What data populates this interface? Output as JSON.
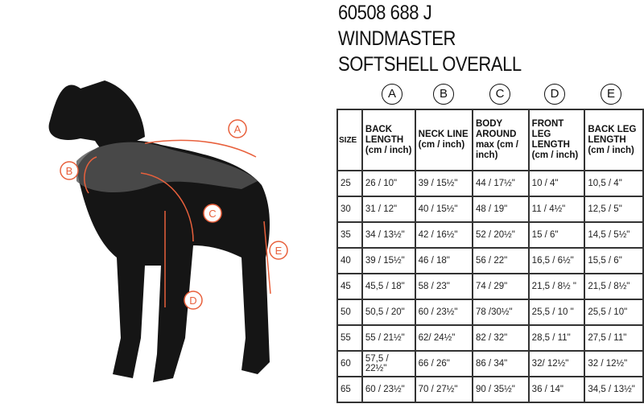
{
  "title_lines": [
    "60508 688 J",
    "WINDMASTER",
    "SOFTSHELL OVERALL"
  ],
  "diagram_labels": [
    "A",
    "B",
    "C",
    "D",
    "E"
  ],
  "accent_color": "#e8603c",
  "table": {
    "column_letters": [
      "A",
      "B",
      "C",
      "D",
      "E"
    ],
    "headers": [
      "SIZE",
      "BACK LENGTH (cm / inch)",
      "NECK LINE (cm / inch)",
      "BODY AROUND max (cm / inch)",
      "FRONT LEG LENGTH (cm / inch)",
      "BACK LEG LENGTH (cm / inch)"
    ],
    "rows": [
      [
        "25",
        "26 / 10\"",
        "39 / 15½\"",
        "44 / 17½\"",
        "10 / 4\"",
        "10,5 / 4\""
      ],
      [
        "30",
        "31 / 12\"",
        "40 / 15½\"",
        "48 / 19\"",
        "11 / 4½\"",
        "12,5 / 5\""
      ],
      [
        "35",
        "34 / 13½\"",
        "42 / 16½\"",
        "52 / 20½\"",
        "15 / 6\"",
        "14,5 / 5½\""
      ],
      [
        "40",
        "39 / 15½\"",
        "46 / 18\"",
        "56 / 22\"",
        "16,5 / 6½\"",
        "15,5 / 6\""
      ],
      [
        "45",
        "45,5 / 18\"",
        "58 / 23\"",
        "74 / 29\"",
        "21,5 / 8½ \"",
        "21,5 / 8½\""
      ],
      [
        "50",
        "50,5 / 20\"",
        "60 / 23½\"",
        "78 /30½\"",
        "25,5 / 10 \"",
        "25,5 / 10\""
      ],
      [
        "55",
        "55 / 21½\"",
        "62/ 24½\"",
        "82 / 32\"",
        "28,5 / 11\"",
        "27,5 / 11\""
      ],
      [
        "60",
        "57,5 / 22½\"",
        "66 / 26\"",
        "86 / 34\"",
        "32/ 12½\"",
        "32 / 12½\""
      ],
      [
        "65",
        "60 / 23½\"",
        "70 / 27½\"",
        "90 / 35½\"",
        "36 / 14\"",
        "34,5 / 13½\""
      ]
    ]
  }
}
